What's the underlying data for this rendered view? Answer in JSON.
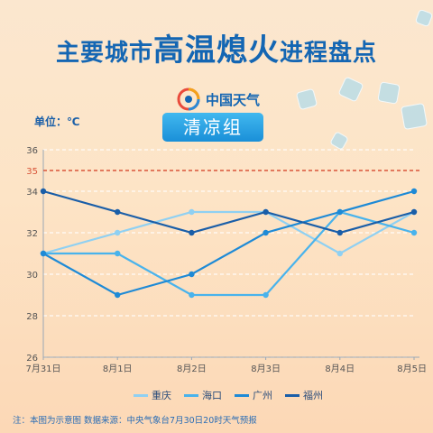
{
  "header": {
    "title_part1": "主要城市",
    "title_part2": "高温熄火",
    "title_part3": "进程盘点",
    "logo_text": "中国天气",
    "unit_label": "单位：℃",
    "group_label": "清凉组"
  },
  "footer": {
    "note": "注：本图为示意图  数据来源：中央气象台7月30日20时天气预报"
  },
  "colors": {
    "reference_line": "#d9553a",
    "grid": "#ffffff",
    "axis_text": "#555555"
  },
  "chart_data": {
    "type": "line",
    "categories": [
      "7月31日",
      "8月1日",
      "8月2日",
      "8月3日",
      "8月4日",
      "8月5日"
    ],
    "ylim": [
      26,
      36
    ],
    "yticks": [
      26,
      28,
      30,
      32,
      34,
      36
    ],
    "reference_line": {
      "value": 35,
      "label": "35",
      "style": "dashed"
    },
    "legend_position": "bottom",
    "series": [
      {
        "name": "重庆",
        "color": "#8fd0f2",
        "values": [
          31,
          32,
          33,
          33,
          31,
          33
        ]
      },
      {
        "name": "海口",
        "color": "#49b3ec",
        "values": [
          31,
          31,
          29,
          29,
          33,
          32
        ]
      },
      {
        "name": "广州",
        "color": "#1e8ad6",
        "values": [
          31,
          29,
          30,
          32,
          33,
          34
        ]
      },
      {
        "name": "福州",
        "color": "#1a5ea8",
        "values": [
          34,
          33,
          32,
          33,
          32,
          33
        ]
      }
    ]
  }
}
